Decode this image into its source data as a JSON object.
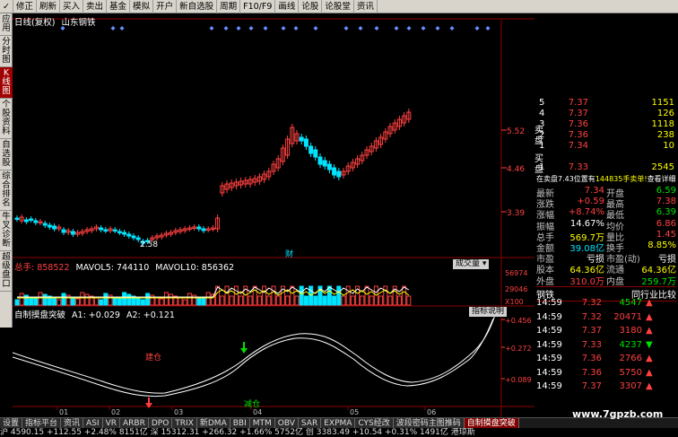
{
  "toolbar": {
    "items": [
      "✓",
      "修正",
      "刷新",
      "买入",
      "卖出",
      "基金",
      "模拟",
      "开户",
      "新自选股",
      "周期",
      "F10/F9",
      "画线",
      "论股",
      "论股堂",
      "资讯"
    ]
  },
  "sidebar": {
    "items": [
      "应用",
      "分时图",
      "K线图",
      "个股资料",
      "自选股",
      "综合排名",
      "牛叉诊断",
      "超级盘口"
    ]
  },
  "chart": {
    "header_left": "日线(复权)",
    "header_stock": "山东钢铁",
    "price_ticks": [
      "5.52",
      "4.46",
      "3.39"
    ],
    "low_label": "2.58",
    "mid_label": "财",
    "volume_label": "总手: 858522",
    "mavol5": "MAVOL5: 744110",
    "mavol10": "MAVOL10: 856362",
    "volume_dropdown": "成交量 ▾",
    "vol_ticks": [
      "56974",
      "29046",
      "X100"
    ],
    "indicator_title": "自制摸盘突破",
    "a1": "A1: +0.029",
    "a2": "A2: +0.121",
    "indicator_btn": "指标说明",
    "ind_ticks": [
      "+0.456",
      "+0.272",
      "+0.089"
    ],
    "buy_label": "建仓",
    "sell_label": "减仓",
    "months": [
      "01",
      "02",
      "03",
      "04",
      "05",
      "06"
    ]
  },
  "chart_data": {
    "type": "line",
    "title": "自制摸盘突破",
    "series": [
      {
        "name": "A1"
      },
      {
        "name": "A2"
      }
    ]
  },
  "orderbook": {
    "sells": [
      {
        "lv": "5",
        "price": "7.37",
        "vol": "1151"
      },
      {
        "lv": "4",
        "price": "7.37",
        "vol": "126"
      },
      {
        "lv": "3",
        "price": "7.36",
        "vol": "1118"
      },
      {
        "lv": "2",
        "price": "7.36",
        "vol": "238"
      },
      {
        "lv": "1",
        "price": "7.34",
        "vol": "10"
      }
    ],
    "buy1": {
      "lv": "1",
      "price": "7.33",
      "vol": "2545"
    },
    "sell_side_label": "卖盘",
    "buy_side_label": "买盘",
    "mid_line_a": "在卖盘7.43位置有",
    "mid_line_b": "144835手卖单!",
    "mid_line_c": "查看详细"
  },
  "quote": [
    {
      "l1": "最新",
      "v1": "7.34",
      "l2": "开盘",
      "v2": "6.59",
      "c1": "#ff4040",
      "c2": "#00e000"
    },
    {
      "l1": "涨跌",
      "v1": "+0.59",
      "l2": "最高",
      "v2": "7.38",
      "c1": "#ff4040",
      "c2": "#ff4040"
    },
    {
      "l1": "涨幅",
      "v1": "+8.74%",
      "l2": "最低",
      "v2": "6.39",
      "c1": "#ff4040",
      "c2": "#00e000"
    },
    {
      "l1": "振幅",
      "v1": "14.67%",
      "l2": "均价",
      "v2": "6.86",
      "c1": "#ffffff",
      "c2": "#ff4040"
    },
    {
      "l1": "总手",
      "v1": "569.7万",
      "l2": "量比",
      "v2": "1.45",
      "c1": "#ffff00",
      "c2": "#ff4040"
    },
    {
      "l1": "金额",
      "v1": "39.08亿",
      "l2": "换手",
      "v2": "8.85%",
      "c1": "#00e5ff",
      "c2": "#ffff00"
    },
    {
      "l1": "市盈",
      "v1": "亏损",
      "l2": "市盈(动)",
      "v2": "亏损",
      "c1": "#ffffff",
      "c2": "#ffffff"
    },
    {
      "l1": "股本",
      "v1": "64.36亿",
      "l2": "流通",
      "v2": "64.36亿",
      "c1": "#ffff00",
      "c2": "#ffff00"
    },
    {
      "l1": "外盘",
      "v1": "310.0万",
      "l2": "内盘",
      "v2": "259.7万",
      "c1": "#ff4040",
      "c2": "#00e000"
    }
  ],
  "industry": {
    "name": "钢铁",
    "compare": "同行业比较"
  },
  "ticks": [
    {
      "time": "14:59",
      "price": "7.32",
      "vol": "4547",
      "dir": "up",
      "c": "#ff4040",
      "vc": "#00e000"
    },
    {
      "time": "14:59",
      "price": "7.32",
      "vol": "20471",
      "dir": "up",
      "c": "#ff4040",
      "vc": "#ff4040"
    },
    {
      "time": "14:59",
      "price": "7.37",
      "vol": "3180",
      "dir": "up",
      "c": "#ff4040",
      "vc": "#ff4040"
    },
    {
      "time": "14:59",
      "price": "7.33",
      "vol": "4237",
      "dir": "down",
      "c": "#ff4040",
      "vc": "#00e000"
    },
    {
      "time": "14:59",
      "price": "7.36",
      "vol": "2766",
      "dir": "up",
      "c": "#ff4040",
      "vc": "#ff4040"
    },
    {
      "time": "14:59",
      "price": "7.36",
      "vol": "5750",
      "dir": "up",
      "c": "#ff4040",
      "vc": "#ff4040"
    },
    {
      "time": "14:59",
      "price": "7.37",
      "vol": "3307",
      "dir": "up",
      "c": "#ff4040",
      "vc": "#ff4040"
    }
  ],
  "bottom_tabs": [
    "设置",
    "指标平台",
    "资讯",
    "ASI",
    "VR",
    "ARBR",
    "DPO",
    "TRIX",
    "新DMA",
    "BBI",
    "MTM",
    "OBV",
    "SAR",
    "EXPMA",
    "CYS经改",
    "波段密码主图推码",
    "自制摸盘突破"
  ],
  "watermark": "www.7gpzb.com",
  "status": "沪 4590.15 +112.55 +2.48%  8151亿  深 15312.31 +266.32 +1.66%  5752亿  创 3383.49 +10.54 +0.31%  1491亿  港琼斯",
  "colors": {
    "up": "#ff4040",
    "down": "#00e5ff",
    "grid": "#8b0000"
  }
}
